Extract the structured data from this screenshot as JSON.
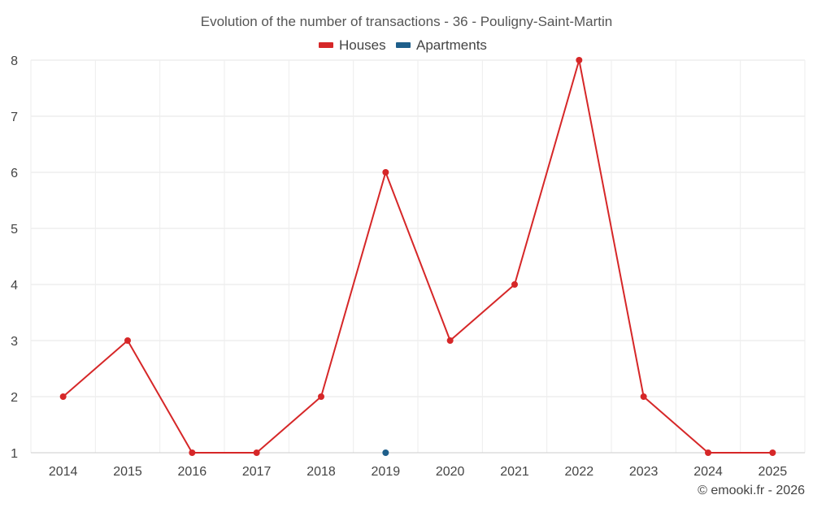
{
  "chart_data": {
    "type": "line",
    "title": "Evolution of the number of transactions - 36 - Pouligny-Saint-Martin",
    "categories": [
      "2014",
      "2015",
      "2016",
      "2017",
      "2018",
      "2019",
      "2020",
      "2021",
      "2022",
      "2023",
      "2024",
      "2025"
    ],
    "series": [
      {
        "name": "Houses",
        "color": "#d62728",
        "values": [
          2,
          3,
          1,
          1,
          2,
          6,
          3,
          4,
          8,
          2,
          1,
          1
        ]
      },
      {
        "name": "Apartments",
        "color": "#1f5f8b",
        "values": [
          null,
          null,
          null,
          null,
          null,
          1,
          null,
          null,
          null,
          null,
          null,
          null
        ]
      }
    ],
    "ylim": [
      1,
      8
    ],
    "yticks": [
      1,
      2,
      3,
      4,
      5,
      6,
      7,
      8
    ],
    "xlabel": "",
    "ylabel": "",
    "grid": true,
    "legend": "top-center"
  },
  "credit": "© emooki.fr - 2026"
}
